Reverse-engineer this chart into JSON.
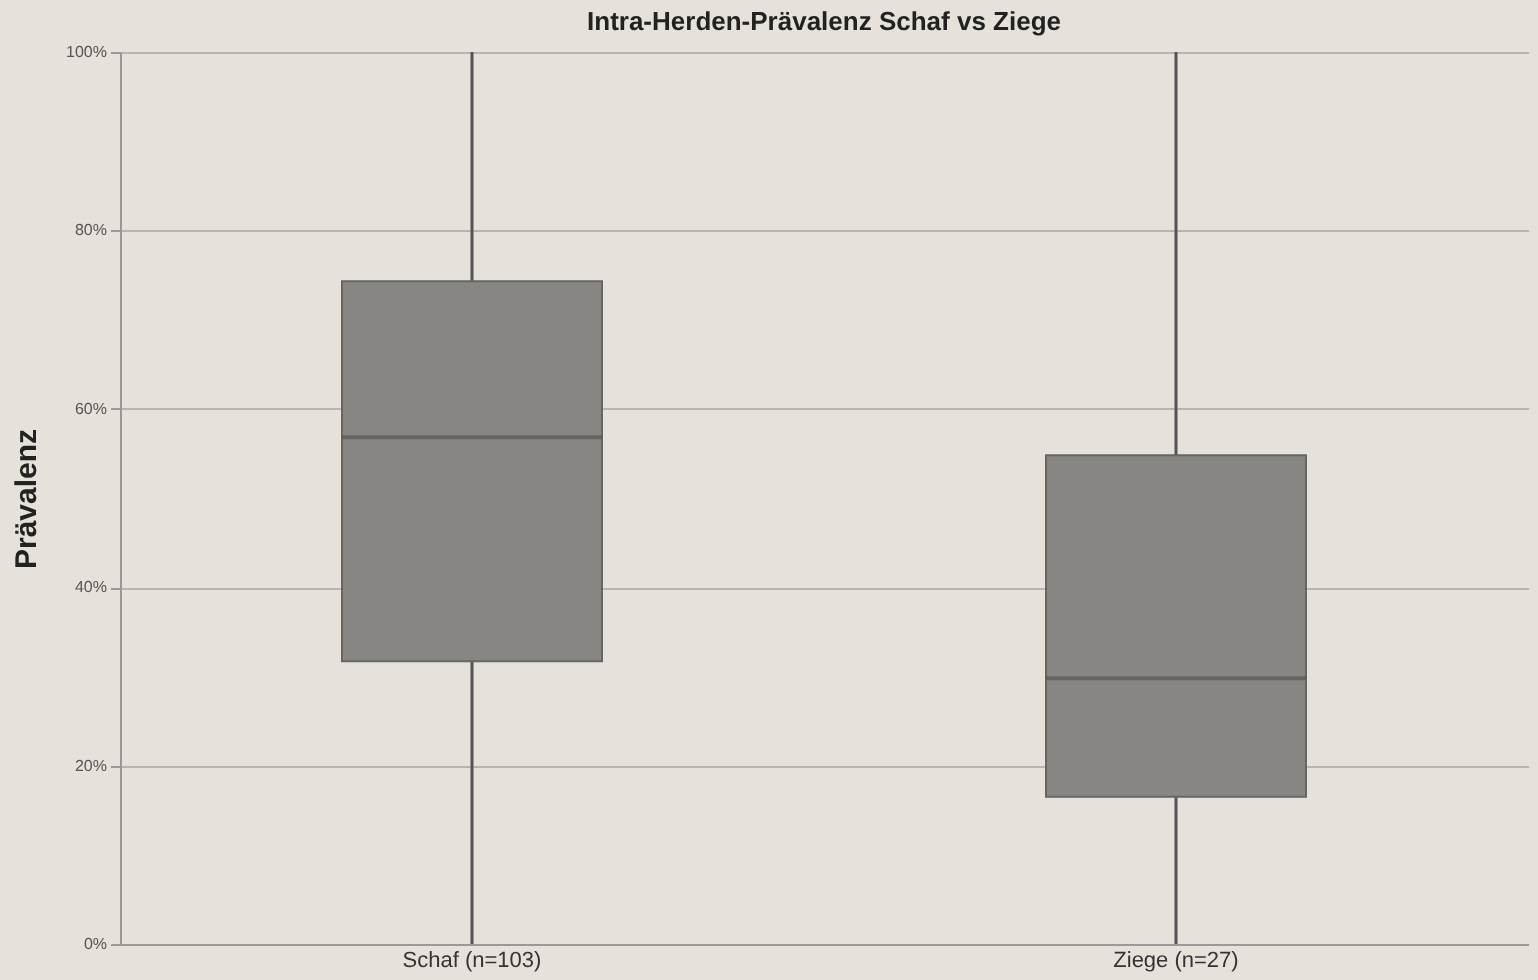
{
  "chart_data": {
    "type": "box",
    "title": "Intra-Herden-Prävalenz Schaf vs Ziege",
    "ylabel": "Prävalenz",
    "categories": [
      "Schaf (n=103)",
      "Ziege (n=27)"
    ],
    "boxes": [
      {
        "low": 0,
        "q1": 31.7,
        "median": 56.8,
        "q3": 74.3,
        "high": 100
      },
      {
        "low": 0,
        "q1": 16.5,
        "median": 29.8,
        "q3": 54.8,
        "high": 100
      }
    ],
    "color": "#878683",
    "ylim": [
      0,
      100
    ],
    "yticks": [
      {
        "value": 0,
        "label": "0%"
      },
      {
        "value": 20,
        "label": "20%"
      },
      {
        "value": 40,
        "label": "40%"
      },
      {
        "value": 60,
        "label": "60%"
      },
      {
        "value": 80,
        "label": "80%"
      },
      {
        "value": 100,
        "label": "100%"
      }
    ],
    "grid": "y"
  }
}
